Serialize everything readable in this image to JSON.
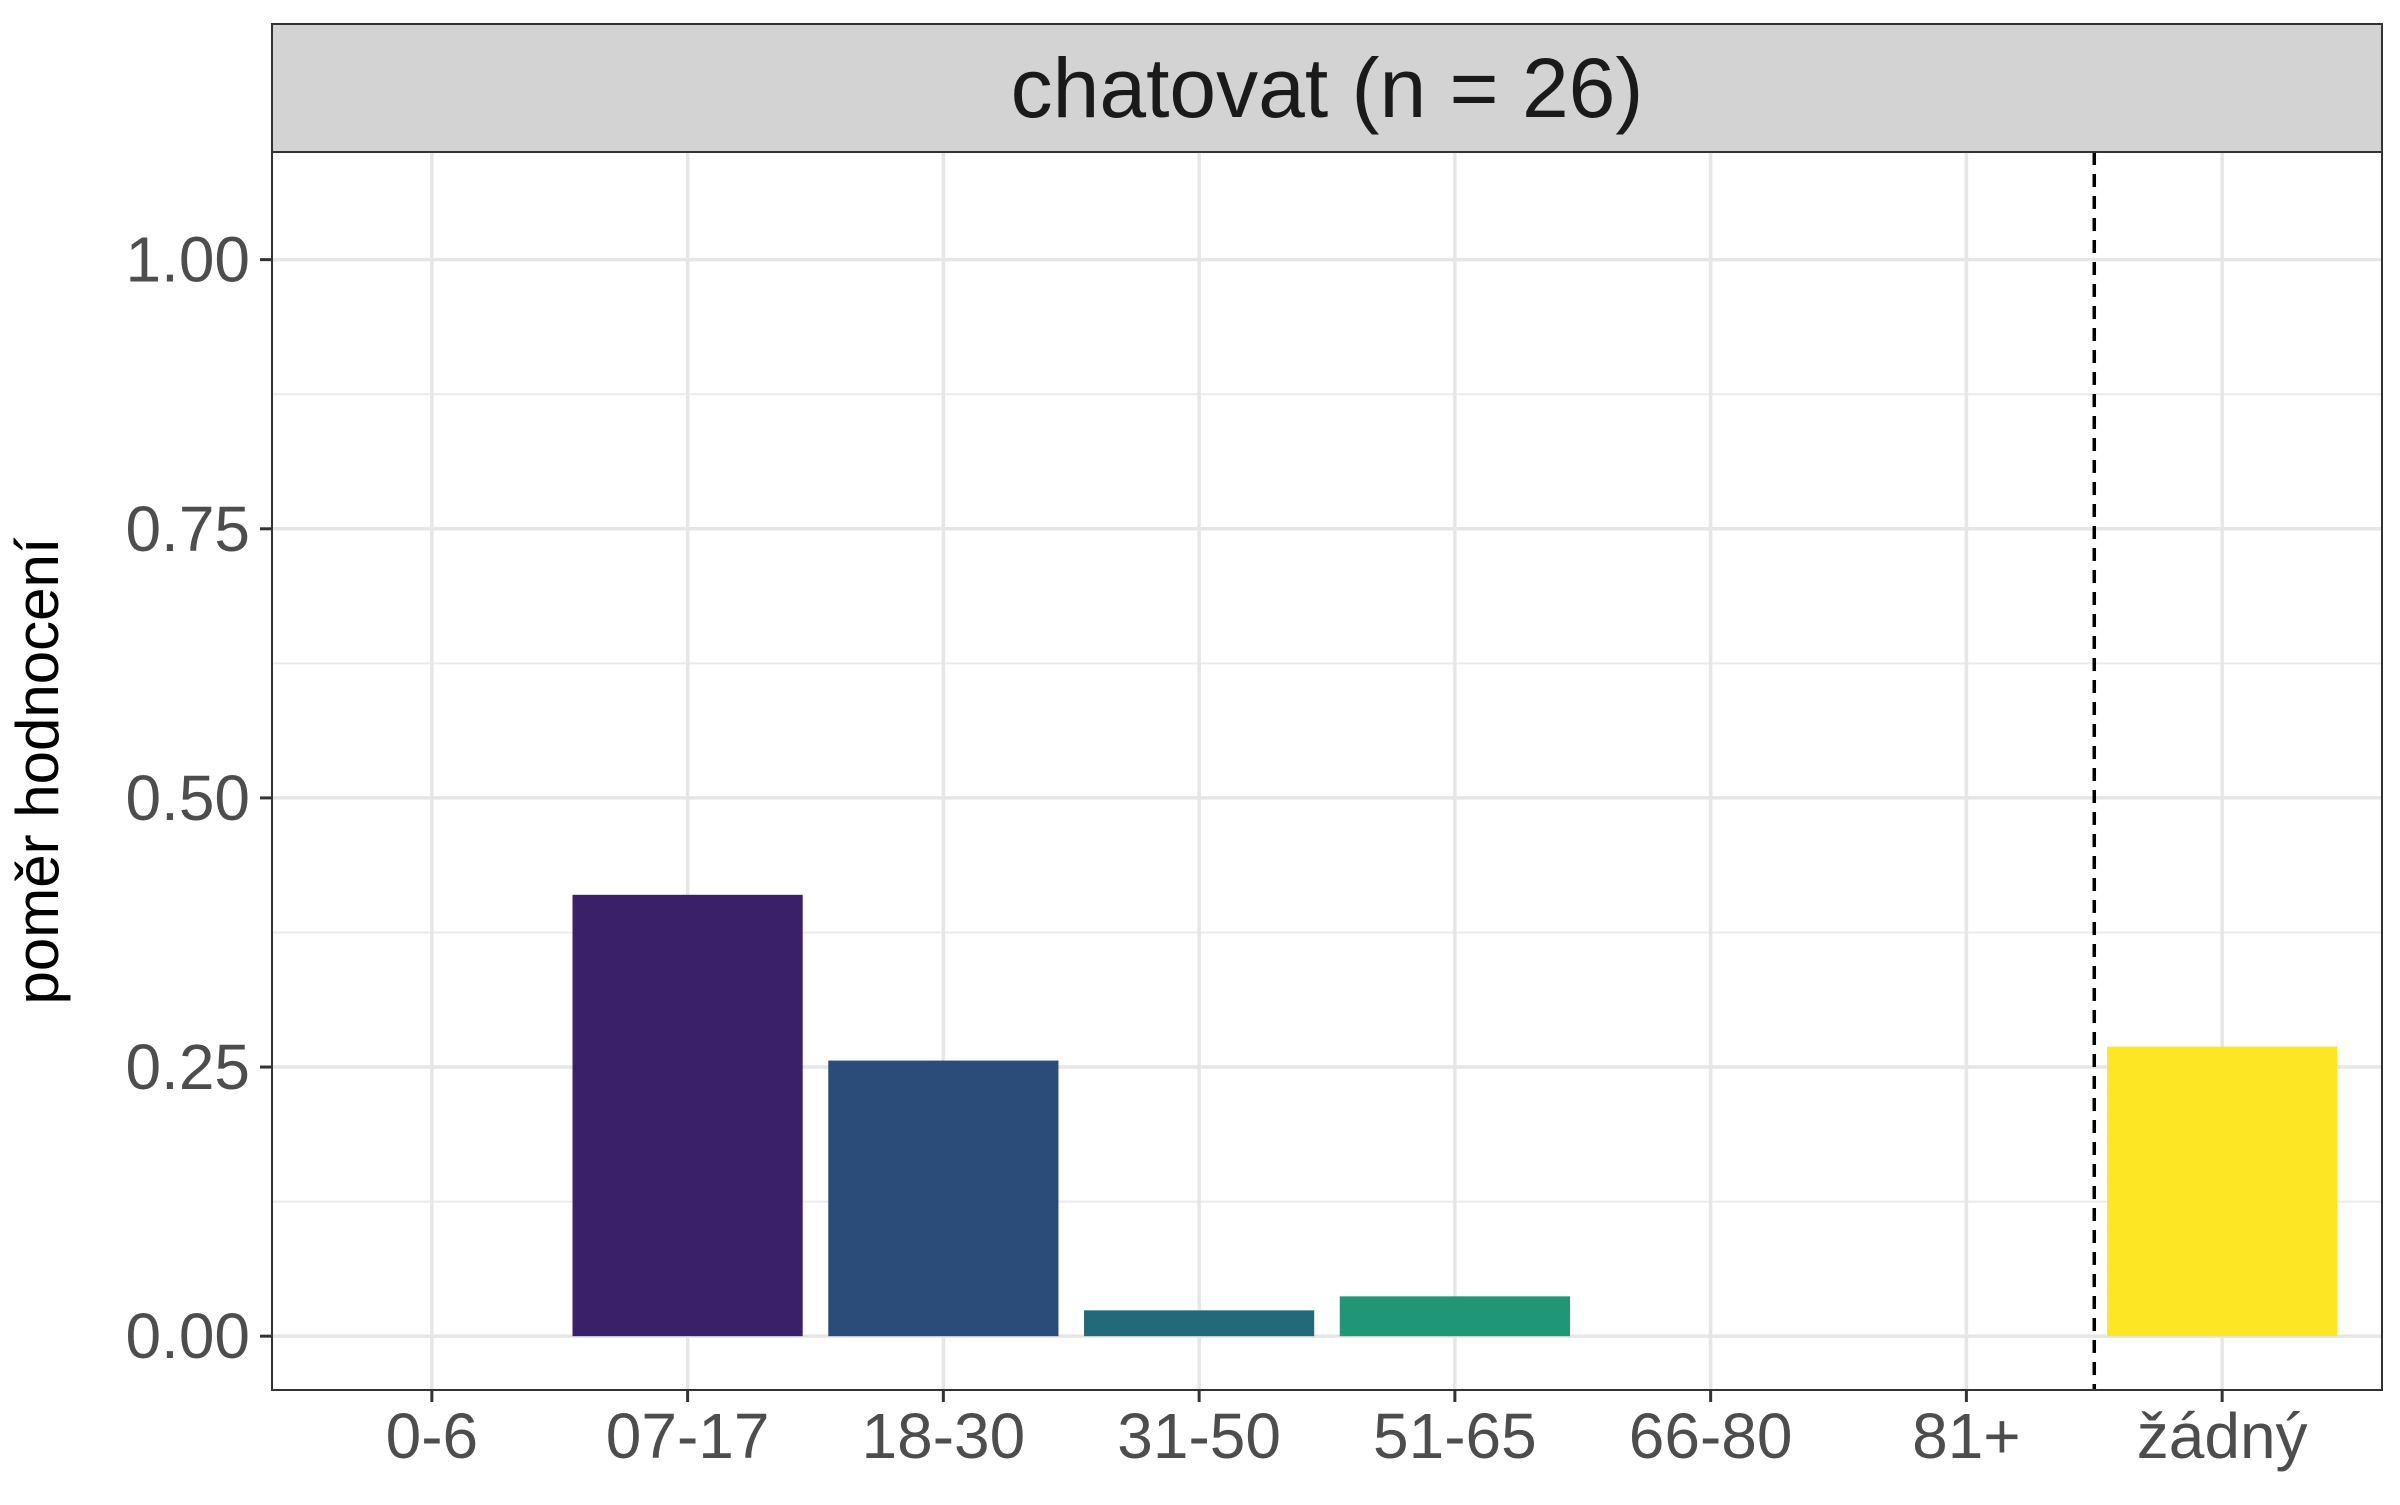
{
  "chart_data": {
    "type": "bar",
    "facet_title": "chatovat (n = 26)",
    "ylabel": "poměr hodnocení",
    "xlabel": "",
    "categories": [
      "0-6",
      "07-17",
      "18-30",
      "31-50",
      "51-65",
      "66-80",
      "81+",
      "žádný"
    ],
    "values": [
      0,
      0.41,
      0.256,
      0.024,
      0.037,
      0,
      0,
      0.269
    ],
    "colors": [
      "#440154",
      "#3A2068",
      "#2B4B79",
      "#22697A",
      "#1F9675",
      "#5CC86A",
      "#A8DB34",
      "#FDE725"
    ],
    "ylim": [
      -0.05,
      1.1
    ],
    "yticks": [
      0,
      0.25,
      0.5,
      0.75,
      1.0
    ],
    "ytick_labels": [
      "0.00",
      "0.25",
      "0.50",
      "0.75",
      "1.00"
    ],
    "grid": true,
    "separator_after_category": "81+",
    "separator_style": "dashed"
  }
}
